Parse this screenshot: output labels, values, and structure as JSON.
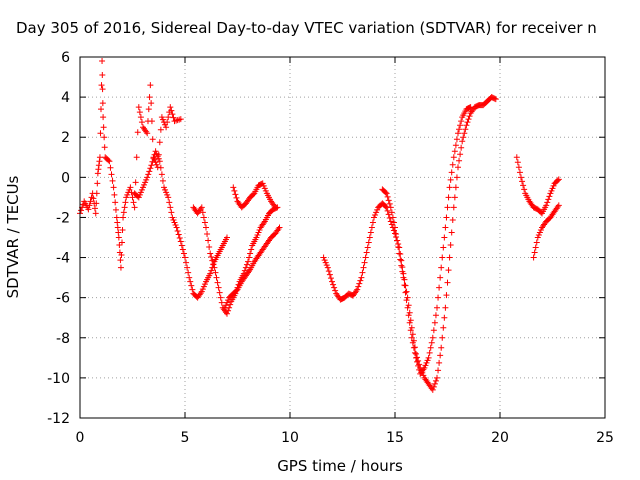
{
  "chart_data": {
    "type": "scatter",
    "title": "Day 305 of 2016, Sidereal Day-to-day VTEC variation (SDTVAR) for receiver n",
    "xlabel": "GPS time / hours",
    "ylabel": "SDTVAR / TECUs",
    "xlim": [
      0,
      25
    ],
    "ylim": [
      -12,
      6
    ],
    "xticks": [
      "0",
      "5",
      "10",
      "15",
      "20",
      "25"
    ],
    "yticks": [
      "-12",
      "-10",
      "-8",
      "-6",
      "-4",
      "-2",
      "0",
      "2",
      "4",
      "6"
    ],
    "grid": true,
    "marker": "+",
    "color": "#ff0000",
    "series": [
      {
        "segments": [
          [
            [
              0.0,
              -1.8
            ],
            [
              0.2,
              -1.2
            ],
            [
              0.4,
              -1.6
            ],
            [
              0.6,
              -0.8
            ],
            [
              0.75,
              -1.8
            ],
            [
              0.85,
              0.2
            ],
            [
              0.95,
              1.0
            ],
            [
              1.05,
              5.8
            ],
            [
              1.1,
              3.0
            ],
            [
              1.2,
              1.0
            ],
            [
              1.4,
              0.8
            ],
            [
              1.6,
              -0.5
            ],
            [
              1.75,
              -2.0
            ],
            [
              1.85,
              -3.0
            ],
            [
              1.95,
              -4.5
            ],
            [
              2.05,
              -2.0
            ],
            [
              2.2,
              -1.0
            ],
            [
              2.4,
              -0.5
            ],
            [
              2.6,
              -1.5
            ],
            [
              2.8,
              3.5
            ],
            [
              3.0,
              2.5
            ],
            [
              3.2,
              2.2
            ],
            [
              3.35,
              4.6
            ],
            [
              3.5,
              1.0
            ],
            [
              3.7,
              0.5
            ],
            [
              3.9,
              3.0
            ],
            [
              4.1,
              2.5
            ],
            [
              4.3,
              3.5
            ],
            [
              4.5,
              2.8
            ],
            [
              4.8,
              2.9
            ]
          ],
          [
            [
              2.6,
              -0.8
            ],
            [
              2.8,
              -1.0
            ],
            [
              3.0,
              -0.5
            ],
            [
              3.2,
              0.0
            ],
            [
              3.4,
              0.6
            ],
            [
              3.6,
              1.3
            ],
            [
              3.8,
              0.8
            ],
            [
              4.0,
              -0.5
            ],
            [
              4.2,
              -1.0
            ],
            [
              4.4,
              -2.0
            ],
            [
              4.6,
              -2.5
            ],
            [
              4.8,
              -3.2
            ],
            [
              5.0,
              -4.0
            ],
            [
              5.2,
              -5.0
            ],
            [
              5.4,
              -5.8
            ],
            [
              5.6,
              -6.0
            ],
            [
              5.8,
              -5.7
            ],
            [
              6.0,
              -5.2
            ],
            [
              6.2,
              -4.8
            ],
            [
              6.4,
              -4.2
            ],
            [
              6.6,
              -3.8
            ],
            [
              6.8,
              -3.4
            ],
            [
              7.0,
              -3.0
            ]
          ],
          [
            [
              5.4,
              -1.5
            ],
            [
              5.6,
              -1.8
            ],
            [
              5.8,
              -1.5
            ],
            [
              6.0,
              -2.5
            ],
            [
              6.2,
              -3.8
            ],
            [
              6.4,
              -4.5
            ],
            [
              6.6,
              -5.5
            ],
            [
              6.8,
              -6.5
            ],
            [
              7.0,
              -6.8
            ],
            [
              7.2,
              -6.2
            ],
            [
              7.4,
              -5.8
            ],
            [
              7.6,
              -5.2
            ],
            [
              7.8,
              -4.8
            ],
            [
              8.0,
              -4.2
            ],
            [
              8.2,
              -3.4
            ],
            [
              8.4,
              -3.0
            ],
            [
              8.6,
              -2.5
            ],
            [
              8.8,
              -2.2
            ],
            [
              9.0,
              -1.8
            ],
            [
              9.2,
              -1.6
            ],
            [
              9.4,
              -1.5
            ]
          ],
          [
            [
              7.3,
              -0.5
            ],
            [
              7.5,
              -1.2
            ],
            [
              7.7,
              -1.5
            ],
            [
              7.9,
              -1.3
            ],
            [
              8.1,
              -1.0
            ],
            [
              8.3,
              -0.8
            ],
            [
              8.5,
              -0.4
            ],
            [
              8.7,
              -0.3
            ],
            [
              8.9,
              -0.8
            ],
            [
              9.1,
              -1.2
            ],
            [
              9.3,
              -1.5
            ]
          ],
          [
            [
              6.9,
              -6.5
            ],
            [
              7.1,
              -6.0
            ],
            [
              7.3,
              -5.8
            ],
            [
              7.5,
              -5.6
            ],
            [
              7.7,
              -5.2
            ],
            [
              7.9,
              -4.9
            ],
            [
              8.1,
              -4.6
            ],
            [
              8.3,
              -4.2
            ],
            [
              8.5,
              -3.9
            ],
            [
              8.7,
              -3.6
            ],
            [
              8.9,
              -3.3
            ],
            [
              9.1,
              -3.0
            ],
            [
              9.3,
              -2.8
            ],
            [
              9.5,
              -2.5
            ]
          ],
          [
            [
              11.6,
              -4.0
            ],
            [
              11.8,
              -4.5
            ],
            [
              12.0,
              -5.2
            ],
            [
              12.2,
              -5.8
            ],
            [
              12.4,
              -6.1
            ],
            [
              12.6,
              -6.0
            ],
            [
              12.8,
              -5.8
            ],
            [
              13.0,
              -5.9
            ],
            [
              13.2,
              -5.6
            ],
            [
              13.4,
              -5.0
            ],
            [
              13.6,
              -4.0
            ],
            [
              13.8,
              -3.0
            ],
            [
              14.0,
              -2.0
            ],
            [
              14.2,
              -1.5
            ],
            [
              14.4,
              -1.3
            ],
            [
              14.6,
              -1.5
            ],
            [
              14.8,
              -2.2
            ],
            [
              15.0,
              -2.8
            ],
            [
              15.2,
              -3.5
            ],
            [
              15.4,
              -4.8
            ],
            [
              15.6,
              -6.0
            ],
            [
              15.8,
              -7.5
            ],
            [
              16.0,
              -8.8
            ],
            [
              16.2,
              -9.5
            ],
            [
              16.4,
              -10.0
            ],
            [
              16.6,
              -10.3
            ],
            [
              16.8,
              -10.6
            ],
            [
              17.0,
              -10.0
            ],
            [
              17.2,
              -8.5
            ],
            [
              17.4,
              -6.5
            ],
            [
              17.6,
              -4.0
            ],
            [
              17.8,
              -1.5
            ],
            [
              18.0,
              0.5
            ],
            [
              18.2,
              1.8
            ],
            [
              18.4,
              2.6
            ],
            [
              18.6,
              3.2
            ],
            [
              18.8,
              3.5
            ],
            [
              19.0,
              3.6
            ],
            [
              19.2,
              3.6
            ],
            [
              19.4,
              3.8
            ],
            [
              19.6,
              4.0
            ],
            [
              19.8,
              3.9
            ]
          ],
          [
            [
              14.4,
              -0.6
            ],
            [
              14.6,
              -0.8
            ],
            [
              14.8,
              -1.5
            ],
            [
              15.0,
              -2.5
            ],
            [
              15.2,
              -3.8
            ],
            [
              15.4,
              -5.0
            ],
            [
              15.6,
              -6.5
            ],
            [
              15.8,
              -8.0
            ],
            [
              16.0,
              -9.0
            ],
            [
              16.2,
              -9.8
            ],
            [
              16.4,
              -9.5
            ],
            [
              16.6,
              -9.0
            ],
            [
              16.8,
              -8.0
            ],
            [
              17.0,
              -6.5
            ],
            [
              17.2,
              -4.5
            ],
            [
              17.4,
              -2.5
            ],
            [
              17.6,
              -0.5
            ],
            [
              17.8,
              1.0
            ],
            [
              18.0,
              2.2
            ],
            [
              18.2,
              3.0
            ],
            [
              18.4,
              3.4
            ],
            [
              18.6,
              3.5
            ]
          ],
          [
            [
              20.8,
              1.0
            ],
            [
              21.0,
              0.0
            ],
            [
              21.2,
              -0.8
            ],
            [
              21.4,
              -1.2
            ],
            [
              21.6,
              -1.5
            ],
            [
              21.8,
              -1.6
            ],
            [
              22.0,
              -1.8
            ],
            [
              22.2,
              -1.4
            ],
            [
              22.4,
              -0.8
            ],
            [
              22.6,
              -0.3
            ],
            [
              22.8,
              -0.1
            ]
          ],
          [
            [
              21.6,
              -4.0
            ],
            [
              21.8,
              -3.0
            ],
            [
              22.0,
              -2.5
            ],
            [
              22.2,
              -2.2
            ],
            [
              22.4,
              -2.0
            ],
            [
              22.6,
              -1.7
            ],
            [
              22.8,
              -1.4
            ]
          ]
        ]
      }
    ]
  }
}
